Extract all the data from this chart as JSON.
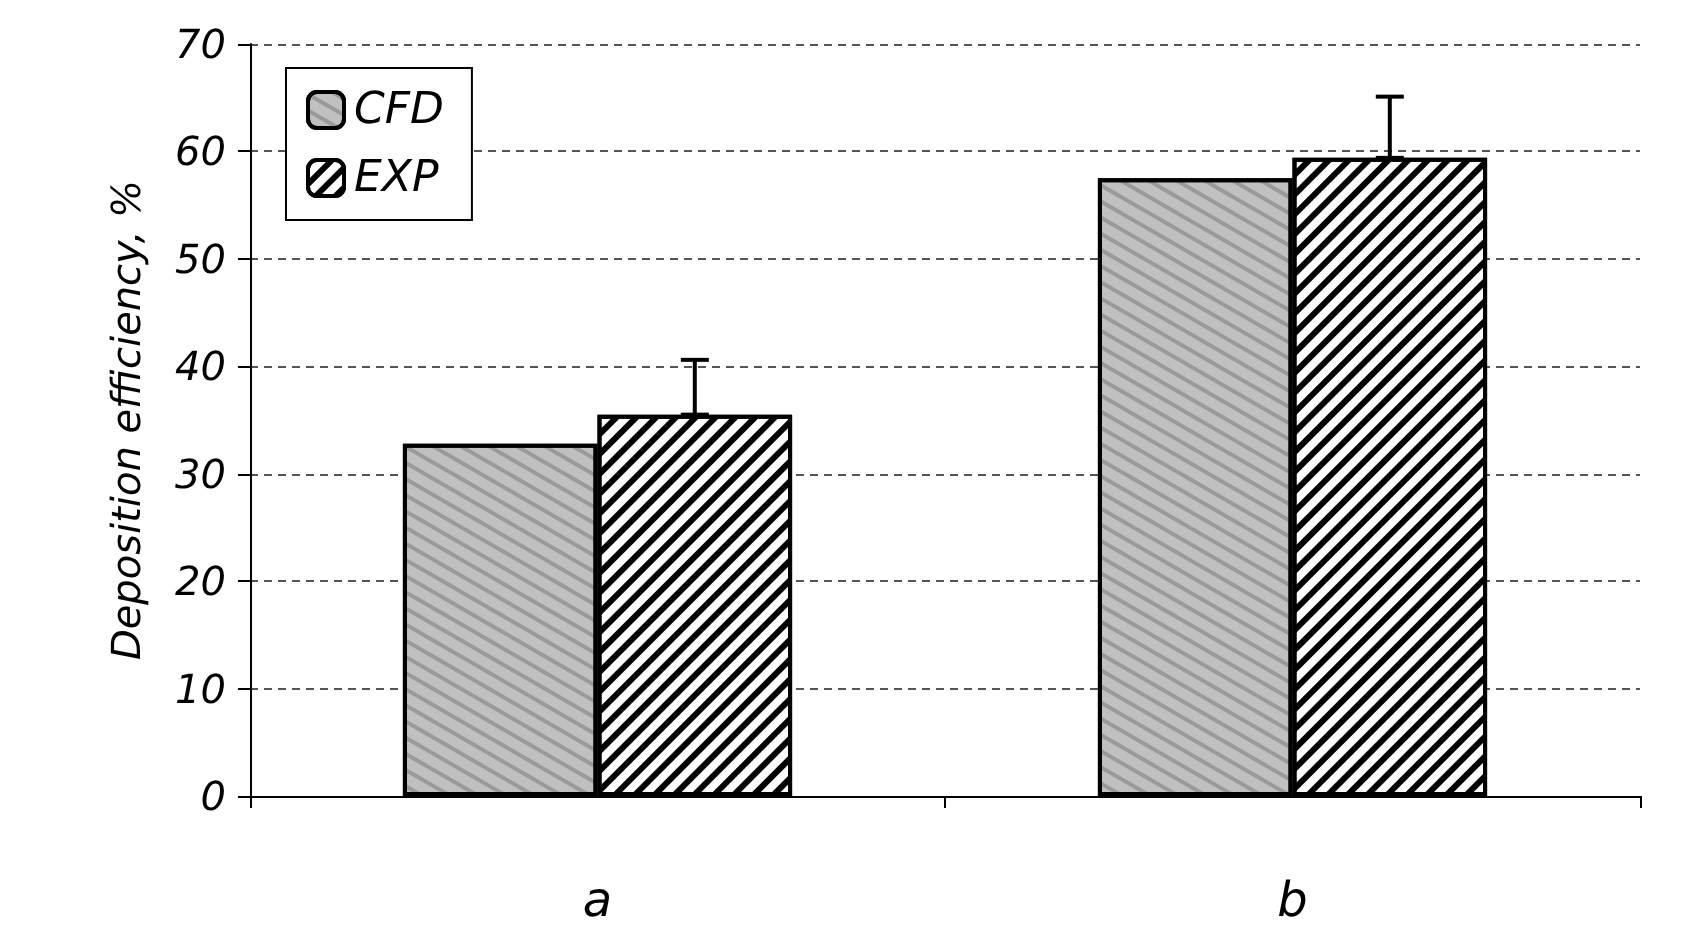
{
  "chart_data": {
    "type": "bar",
    "ylabel": "Deposition efficiency, %",
    "categories": [
      "a",
      "b"
    ],
    "series": [
      {
        "name": "CFD",
        "color": "#c0c0c0",
        "values": [
          32.8,
          57.5
        ]
      },
      {
        "name": "EXP",
        "color": "#ffffff",
        "values": [
          35.5,
          59.4
        ],
        "errors": [
          [
            35.5,
            40.6
          ],
          [
            59.4,
            65.1
          ]
        ]
      }
    ],
    "ylim": [
      0,
      70
    ],
    "yticks": [
      0,
      10,
      20,
      30,
      40,
      50,
      60,
      70
    ],
    "grid": "y",
    "legend": "top left"
  }
}
